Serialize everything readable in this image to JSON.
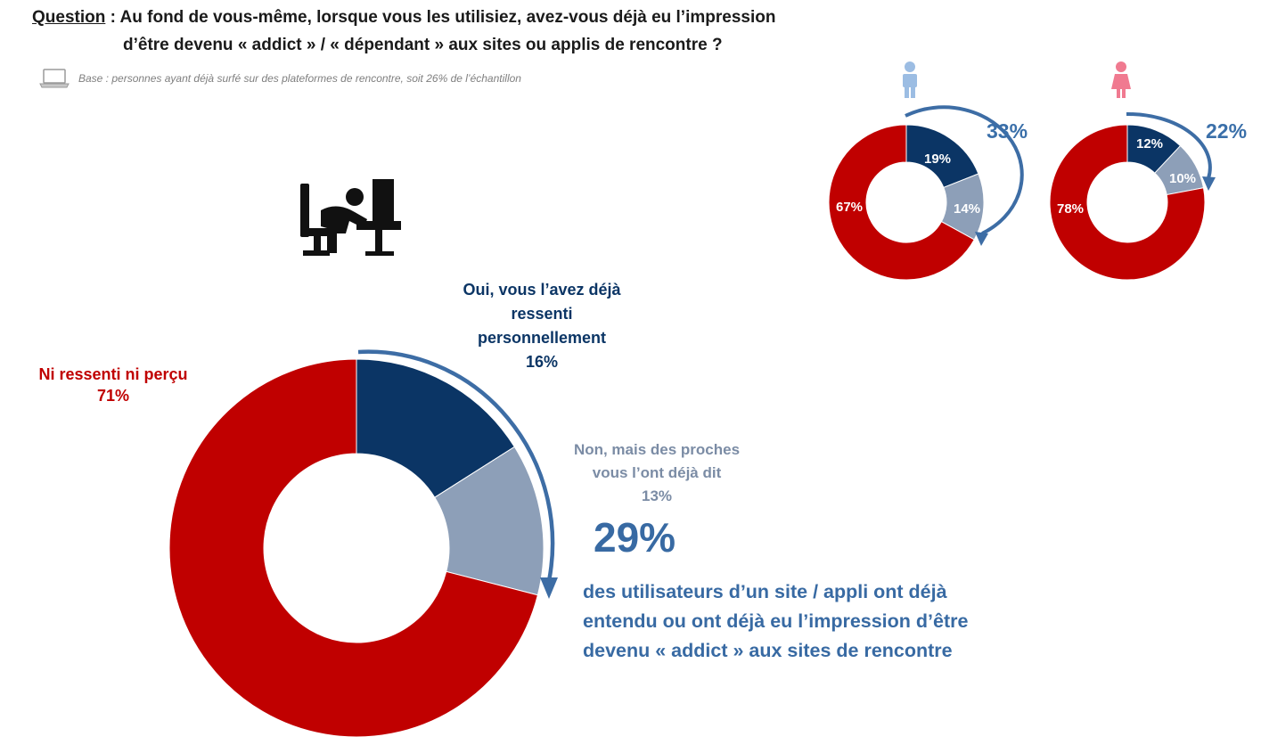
{
  "header": {
    "question_label": "Question",
    "question_line1": " : Au fond de vous-même, lorsque vous les utilisiez, avez-vous déjà eu l’impression",
    "question_line2": "d’être devenu « addict » / « dépendant » aux sites ou applis de rencontre ?",
    "base_text": "Base : personnes ayant déjà surfé sur des plateformes de rencontre, soit 26% de l’échantillon"
  },
  "colors": {
    "navy": "#0b3565",
    "grey_blue": "#8d9fb8",
    "red": "#c00000",
    "arrow": "#3d6da5",
    "male_icon": "#9cbde3",
    "female_icon": "#f07a90"
  },
  "icons": {
    "base": "laptop-icon",
    "main": "person-at-computer-icon",
    "male": "male-figure-icon",
    "female": "female-figure-icon"
  },
  "chart_data": [
    {
      "type": "pie",
      "categories": [
        "Oui, vous l’avez déjà ressenti personnellement",
        "Non, mais des proches vous l’ont déjà dit",
        "Ni ressenti ni perçu"
      ],
      "values": [
        16,
        13,
        71
      ],
      "labels": {
        "yes_line1": "Oui, vous l’avez déjà",
        "yes_line2": "ressenti",
        "yes_line3": "personnellement",
        "yes_value": "16%",
        "proches_line1": "Non, mais des proches",
        "proches_line2": "vous l’ont déjà dit",
        "proches_value": "13%",
        "no_line1": "Ni ressenti ni perçu",
        "no_value": "71%"
      },
      "total_label": "29%",
      "total_text_line1": "des utilisateurs d’un site / appli ont déjà",
      "total_text_line2": "entendu ou ont déjà eu l’impression d’être",
      "total_text_line3": "devenu « addict » aux sites de rencontre"
    },
    {
      "type": "pie",
      "group": "male",
      "values": [
        19,
        14,
        67
      ],
      "value_labels": [
        "19%",
        "14%",
        "67%"
      ],
      "total_label": "33%"
    },
    {
      "type": "pie",
      "group": "female",
      "values": [
        12,
        10,
        78
      ],
      "value_labels": [
        "12%",
        "10%",
        "78%"
      ],
      "total_label": "22%"
    }
  ]
}
